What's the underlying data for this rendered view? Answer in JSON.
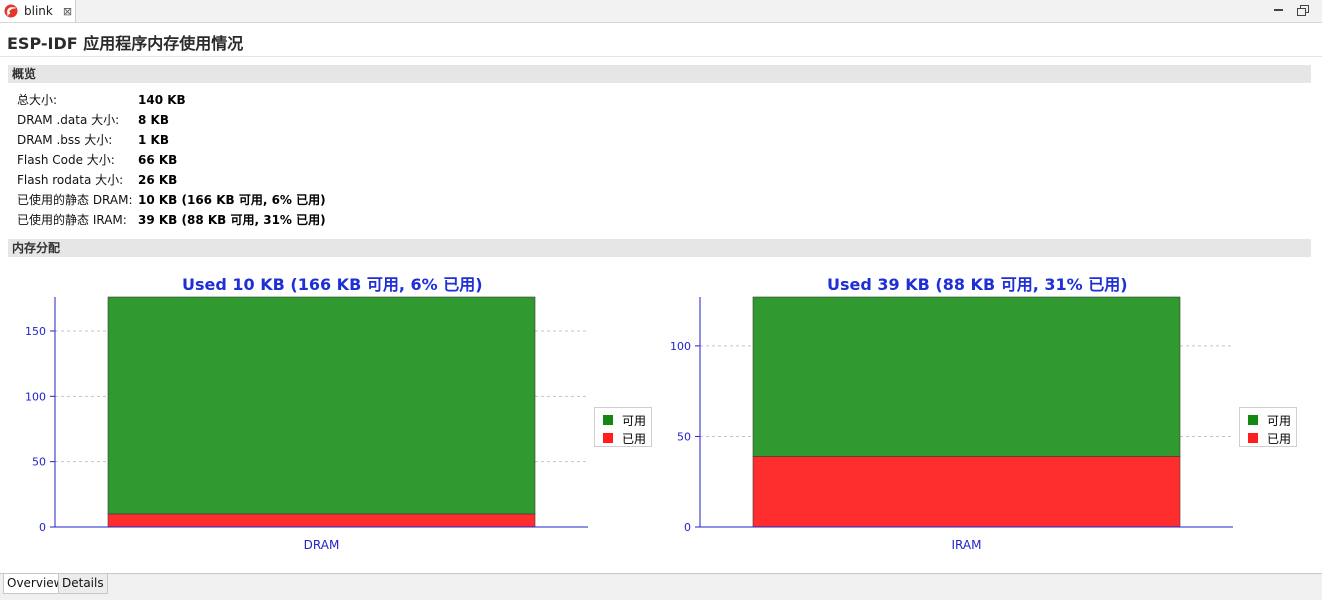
{
  "tab": {
    "label": "blink",
    "close": "⊠",
    "icon": "espressif-logo-icon"
  },
  "window_controls": {
    "minimize_icon": "minimize-icon",
    "restore_icon": "restore-icon"
  },
  "page": {
    "title": "ESP-IDF 应用程序内存使用情况"
  },
  "overview": {
    "header": "概览",
    "rows": [
      {
        "label": "总大小:",
        "value": "140 KB"
      },
      {
        "label": "DRAM .data 大小:",
        "value": "8 KB"
      },
      {
        "label": "DRAM .bss 大小:",
        "value": "1 KB"
      },
      {
        "label": "Flash Code 大小:",
        "value": "66 KB"
      },
      {
        "label": "Flash rodata 大小:",
        "value": "26 KB"
      },
      {
        "label": "已使用的静态 DRAM:",
        "value": "10 KB (166 KB 可用, 6% 已用)"
      },
      {
        "label": "已使用的静态 IRAM:",
        "value": "39 KB (88 KB 可用, 31% 已用)"
      }
    ]
  },
  "memory": {
    "header": "内存分配"
  },
  "colors": {
    "free": "#309a30",
    "used": "#ff2e2e",
    "axis": "#2222cc",
    "title": "#1f2fd8"
  },
  "legend": {
    "free": "可用",
    "used": "已用"
  },
  "chart_data": [
    {
      "type": "bar",
      "title": "Used 10 KB (166 KB 可用, 6%  已用)",
      "categories": [
        "DRAM"
      ],
      "stacked": true,
      "series": [
        {
          "name": "已用",
          "values": [
            10
          ]
        },
        {
          "name": "可用",
          "values": [
            166
          ]
        }
      ],
      "ylim": [
        0,
        176
      ],
      "yticks": [
        0,
        50,
        100,
        150
      ],
      "grid": true,
      "legend": "right"
    },
    {
      "type": "bar",
      "title": "Used 39 KB (88 KB 可用, 31%  已用)",
      "categories": [
        "IRAM"
      ],
      "stacked": true,
      "series": [
        {
          "name": "已用",
          "values": [
            39
          ]
        },
        {
          "name": "可用",
          "values": [
            88
          ]
        }
      ],
      "ylim": [
        0,
        127
      ],
      "yticks": [
        0,
        50,
        100
      ],
      "grid": true,
      "legend": "right"
    }
  ],
  "bottom_tabs": [
    {
      "label": "Overview"
    },
    {
      "label": "Details"
    }
  ]
}
